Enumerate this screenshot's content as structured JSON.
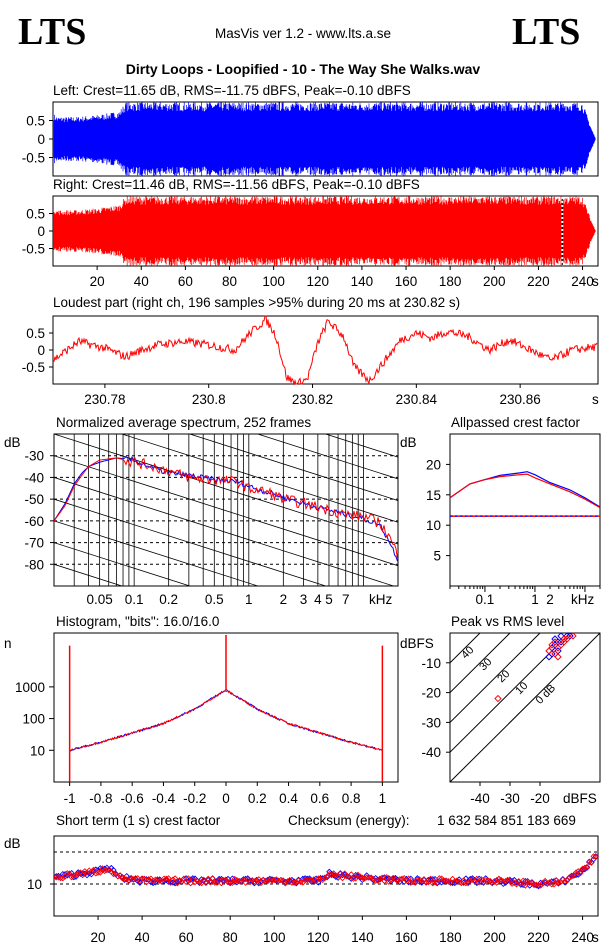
{
  "header": {
    "logo_left": "LTS",
    "logo_right": "LTS",
    "app": "MasVis ver 1.2 - www.lts.a.se",
    "file": "Dirty Loops - Loopified - 10 - The Way She Walks.wav"
  },
  "colors": {
    "left": "#0000ff",
    "right": "#ff0000",
    "grid": "#000000"
  },
  "chart_data": [
    {
      "id": "left_wave",
      "type": "area",
      "title": "Left: Crest=11.65 dB, RMS=-11.75 dBFS, Peak=-0.10 dBFS",
      "ytick_labels": [
        "0.5",
        "0",
        "-0.5"
      ],
      "ylim": [
        -1,
        1
      ],
      "xlim": [
        0,
        247
      ],
      "envelope": {
        "t": [
          0,
          2,
          10,
          20,
          30,
          33,
          40,
          100,
          200,
          240,
          244,
          246
        ],
        "amp": [
          0.7,
          0.6,
          0.6,
          0.65,
          0.75,
          1.0,
          1.0,
          1.0,
          1.0,
          1.0,
          0.3,
          0.0
        ]
      }
    },
    {
      "id": "right_wave",
      "type": "area",
      "title": "Right: Crest=11.46 dB, RMS=-11.56 dBFS, Peak=-0.10 dBFS",
      "ytick_labels": [
        "0.5",
        "0",
        "-0.5"
      ],
      "ylim": [
        -1,
        1
      ],
      "xlim": [
        0,
        247
      ],
      "x_ticks": [
        20,
        40,
        60,
        80,
        100,
        120,
        140,
        160,
        180,
        200,
        220,
        240
      ],
      "x_unit": "s",
      "marker_x": 230.82,
      "envelope": {
        "t": [
          0,
          2,
          10,
          20,
          30,
          33,
          40,
          100,
          200,
          240,
          244,
          246
        ],
        "amp": [
          0.7,
          0.6,
          0.6,
          0.65,
          0.75,
          1.0,
          1.0,
          1.0,
          1.0,
          1.0,
          0.3,
          0.0
        ]
      }
    },
    {
      "id": "loudest",
      "type": "line",
      "title": "Loudest part (right ch, 196 samples >95% during 20 ms at 230.82 s)",
      "ytick_labels": [
        "0.5",
        "0",
        "-0.5"
      ],
      "ylim": [
        -1,
        1
      ],
      "xlim": [
        230.77,
        230.875
      ],
      "x_ticks": [
        230.78,
        230.8,
        230.82,
        230.84,
        230.86
      ],
      "x_unit": "s",
      "x": [
        230.77,
        230.775,
        230.78,
        230.784,
        230.787,
        230.79,
        230.795,
        230.8,
        230.805,
        230.808,
        230.811,
        230.813,
        230.815,
        230.817,
        230.819,
        230.821,
        230.823,
        230.826,
        230.828,
        230.831,
        230.834,
        230.837,
        230.84,
        230.843,
        230.846,
        230.85,
        230.854,
        230.858,
        230.862,
        230.866,
        230.87,
        230.875
      ],
      "y": [
        -0.3,
        0.25,
        0.05,
        -0.2,
        0.0,
        0.15,
        0.25,
        0.15,
        0.0,
        0.5,
        0.9,
        0.4,
        -0.8,
        -1.0,
        -0.85,
        0.2,
        0.85,
        0.4,
        -0.5,
        -0.9,
        -0.3,
        0.3,
        0.5,
        0.35,
        0.55,
        0.4,
        0.0,
        0.3,
        0.0,
        -0.3,
        0.0,
        0.1
      ]
    },
    {
      "id": "spectrum",
      "type": "line",
      "title": "Normalized average spectrum, 252 frames",
      "ylabel": "dB",
      "x_unit": "kHz",
      "x_scale": "log",
      "xlim": [
        0.02,
        20
      ],
      "ylim": [
        -90,
        -20
      ],
      "ytick_labels": [
        "-30",
        "-40",
        "-50",
        "-60",
        "-70",
        "-80"
      ],
      "y_ticks": [
        -30,
        -40,
        -50,
        -60,
        -70,
        -80
      ],
      "x_ticks": [
        0.05,
        0.1,
        0.2,
        0.5,
        1,
        2,
        3,
        4,
        5,
        7
      ],
      "x_tick_labels": [
        "0.05",
        "0.1",
        "0.2",
        "0.5",
        "1",
        "2",
        "3",
        "4",
        "5",
        "7"
      ],
      "series": [
        {
          "freq": [
            0.02,
            0.025,
            0.03,
            0.035,
            0.04,
            0.05,
            0.07,
            0.1,
            0.15,
            0.2,
            0.3,
            0.5,
            0.8,
            1,
            1.5,
            2,
            3,
            5,
            7,
            10,
            14,
            17,
            20
          ],
          "db": [
            -60,
            -52,
            -43,
            -38,
            -35,
            -33,
            -31,
            -32,
            -36,
            -38,
            -39,
            -41,
            -42,
            -44,
            -47,
            -49,
            -52,
            -55,
            -57,
            -59,
            -62,
            -70,
            -78
          ]
        },
        {
          "freq": [
            0.02,
            0.025,
            0.03,
            0.035,
            0.04,
            0.05,
            0.07,
            0.1,
            0.15,
            0.2,
            0.3,
            0.5,
            0.8,
            1,
            1.5,
            2,
            3,
            5,
            7,
            10,
            14,
            17,
            20
          ],
          "db": [
            -60,
            -53,
            -44,
            -39,
            -35,
            -32,
            -31,
            -33,
            -35,
            -37,
            -40,
            -41,
            -42,
            -45,
            -47,
            -50,
            -52,
            -55,
            -57,
            -58,
            -61,
            -68,
            -76
          ]
        }
      ]
    },
    {
      "id": "allpass",
      "type": "line",
      "title": "Allpassed crest factor",
      "ylabel": "dB",
      "x_unit": "kHz",
      "x_scale": "log",
      "xlim": [
        0.02,
        20
      ],
      "ylim": [
        0,
        25
      ],
      "ytick_labels": [
        "20",
        "15",
        "10",
        "5"
      ],
      "y_ticks": [
        20,
        15,
        10,
        5
      ],
      "x_ticks": [
        0.1,
        1,
        2
      ],
      "x_tick_labels": [
        "0.1",
        "1",
        "2"
      ],
      "crest_level": 11.5,
      "series": [
        {
          "freq": [
            0.02,
            0.05,
            0.1,
            0.2,
            0.5,
            0.7,
            1,
            2,
            5,
            10,
            20
          ],
          "db": [
            14.5,
            16.8,
            17.5,
            18.2,
            18.6,
            18.8,
            18.3,
            17.0,
            15.8,
            14.5,
            13.0
          ]
        },
        {
          "freq": [
            0.02,
            0.05,
            0.1,
            0.2,
            0.5,
            0.7,
            1,
            2,
            5,
            10,
            20
          ],
          "db": [
            14.5,
            16.8,
            17.5,
            18.0,
            18.3,
            18.4,
            17.8,
            16.8,
            15.5,
            14.3,
            12.9
          ]
        }
      ]
    },
    {
      "id": "histogram",
      "type": "line",
      "title": "Histogram, \"bits\": 16.0/16.0",
      "ylabel": "n",
      "y_scale": "log",
      "ylim": [
        1,
        50000
      ],
      "xlim": [
        -1.1,
        1.1
      ],
      "ytick_labels": [
        "1000",
        "100",
        "10"
      ],
      "y_ticks": [
        1000,
        100,
        10
      ],
      "x_ticks": [
        -1,
        -0.8,
        -0.6,
        -0.4,
        -0.2,
        0,
        0.2,
        0.4,
        0.6,
        0.8,
        1
      ],
      "x_tick_labels": [
        "-1",
        "-0.8",
        "-0.6",
        "-0.4",
        "-0.2",
        "0",
        "0.2",
        "0.4",
        "0.6",
        "0.8",
        "1"
      ],
      "x": [
        -1.0,
        -0.8,
        -0.6,
        -0.4,
        -0.2,
        0.0,
        0.2,
        0.4,
        0.6,
        0.8,
        1.0
      ],
      "n": [
        10,
        18,
        35,
        70,
        200,
        800,
        200,
        70,
        35,
        18,
        10
      ],
      "edge_spikes_n": 20000
    },
    {
      "id": "peak_rms",
      "type": "scatter",
      "title": "Peak vs RMS level",
      "ylabel": "dBFS",
      "x_unit": "dBFS",
      "xlim": [
        -50,
        0
      ],
      "ylim": [
        -50,
        0
      ],
      "ytick_labels": [
        "-10",
        "-20",
        "-30",
        "-40"
      ],
      "y_ticks": [
        -10,
        -20,
        -30,
        -40
      ],
      "x_ticks": [
        -40,
        -30,
        -20
      ],
      "x_tick_labels": [
        "-40",
        "-30",
        "-20"
      ],
      "diagonal_labels": [
        "40",
        "30",
        "20",
        "10",
        "0 dB"
      ],
      "series": [
        {
          "points": [
            [
              -14,
              -3
            ],
            [
              -15,
              -2
            ],
            [
              -13,
              -1
            ],
            [
              -16,
              -5
            ],
            [
              -12,
              -2
            ],
            [
              -15,
              -4
            ],
            [
              -14,
              -6
            ],
            [
              -17,
              -8
            ],
            [
              -13,
              -3
            ],
            [
              -11,
              -1
            ],
            [
              -10,
              -1
            ],
            [
              -16,
              -7
            ]
          ]
        },
        {
          "points": [
            [
              -12,
              -2
            ],
            [
              -15,
              -3
            ],
            [
              -16,
              -4
            ],
            [
              -14,
              -5
            ],
            [
              -13,
              -4
            ],
            [
              -17,
              -6
            ],
            [
              -15,
              -7
            ],
            [
              -12,
              -3
            ],
            [
              -11,
              -2
            ],
            [
              -9,
              -1
            ],
            [
              -34,
              -22
            ],
            [
              -14,
              -8
            ]
          ]
        }
      ]
    },
    {
      "id": "short_crest",
      "type": "scatter",
      "title": "Short term (1 s) crest factor",
      "ylabel": "dB",
      "ytick_labels": [
        "10"
      ],
      "y_ticks": [
        10
      ],
      "dashed_levels": [
        10,
        20
      ],
      "ylim": [
        0,
        25
      ],
      "xlim": [
        0,
        247
      ],
      "x_ticks": [
        20,
        40,
        60,
        80,
        100,
        120,
        140,
        160,
        180,
        200,
        220,
        240
      ],
      "x_unit": "s",
      "checksum_label": "Checksum (energy):",
      "checksum_value": "1 632 584 851 183 669",
      "crest_profile": {
        "t": [
          0,
          10,
          20,
          25,
          30,
          40,
          60,
          80,
          100,
          120,
          125,
          140,
          160,
          180,
          200,
          220,
          230,
          240,
          245
        ],
        "db": [
          12,
          13,
          14,
          15,
          12,
          11,
          11,
          11,
          11,
          11,
          13,
          12,
          11,
          11,
          11,
          10,
          10.5,
          14,
          18
        ]
      }
    }
  ]
}
